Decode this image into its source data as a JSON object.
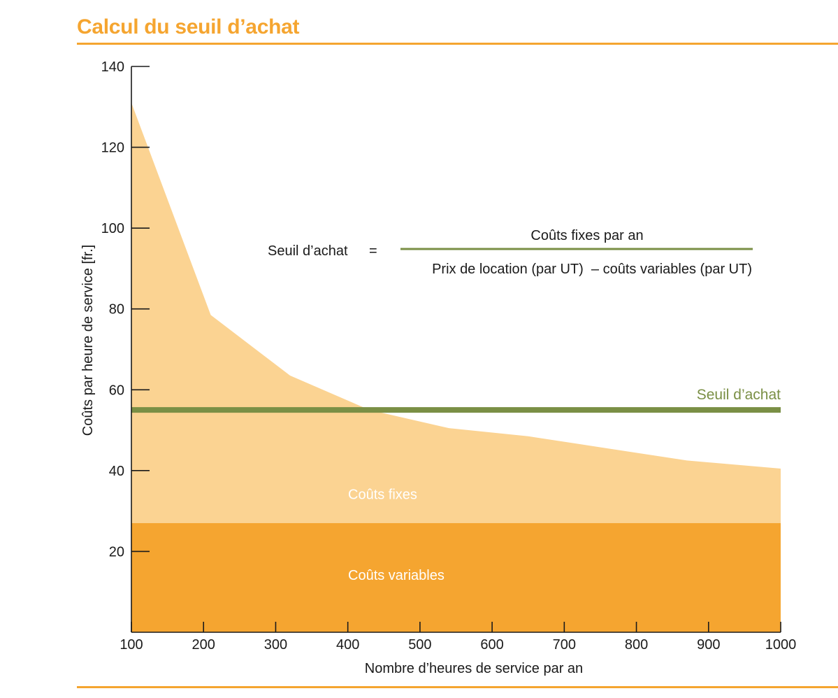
{
  "header": {
    "title": "Calcul du seuil d’achat"
  },
  "colors": {
    "accent": "#f5a530",
    "fixed_costs": "#fbd392",
    "variable_costs": "#f5a530",
    "threshold": "#7a8f45",
    "axis": "#1a1a1a"
  },
  "formula": {
    "lhs": "Seuil d’achat",
    "equals": "=",
    "numerator": "Coûts fixes par an",
    "denominator": "Prix de location (par UT)  – coûts variables (par UT)"
  },
  "chart_data": {
    "type": "area",
    "title": "Calcul du seuil d’achat",
    "xlabel": "Nombre d’heures de service par an",
    "ylabel": "Coûts par heure de service [fr.]",
    "xlim": [
      100,
      1000
    ],
    "ylim": [
      0,
      140
    ],
    "x_ticks": [
      100,
      200,
      300,
      400,
      500,
      600,
      700,
      800,
      900,
      1000
    ],
    "y_ticks": [
      20,
      40,
      60,
      80,
      100,
      120,
      140
    ],
    "x": [
      100,
      210,
      320,
      430,
      540,
      650,
      760,
      870,
      1000
    ],
    "series": [
      {
        "name": "Coûts fixes",
        "label": "Coûts fixes",
        "values": [
          131,
          78.5,
          63.5,
          55,
          50.5,
          48.5,
          45.5,
          42.5,
          40.5
        ]
      },
      {
        "name": "Coûts variables",
        "label": "Coûts variables",
        "values": [
          27,
          27,
          27,
          27,
          27,
          27,
          27,
          27,
          27
        ]
      }
    ],
    "threshold": {
      "label": "Seuil d’achat",
      "value": 55
    },
    "legend": "none",
    "grid": false
  }
}
